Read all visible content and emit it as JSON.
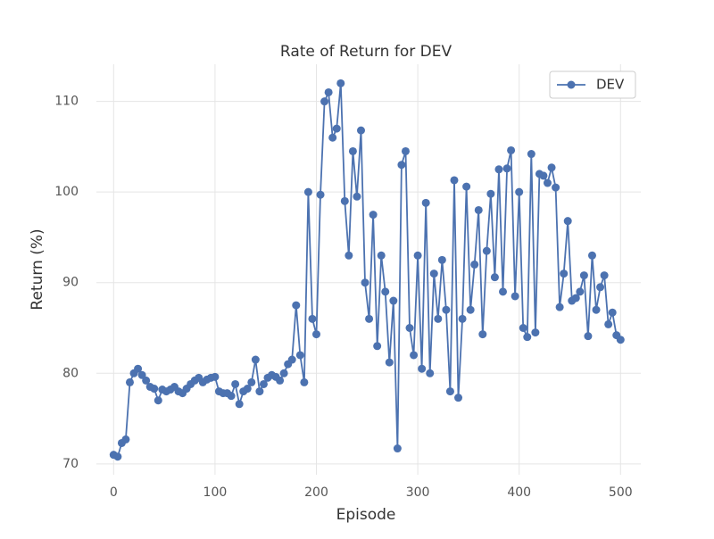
{
  "chart_data": {
    "type": "line",
    "title": "Rate of Return for DEV",
    "x_label": "Episode",
    "y_label": "Return (%)",
    "x": [
      0,
      4,
      8,
      12,
      16,
      20,
      24,
      28,
      32,
      36,
      40,
      44,
      48,
      52,
      56,
      60,
      64,
      68,
      72,
      76,
      80,
      84,
      88,
      92,
      96,
      100,
      104,
      108,
      112,
      116,
      120,
      124,
      128,
      132,
      136,
      140,
      144,
      148,
      152,
      156,
      160,
      164,
      168,
      172,
      176,
      180,
      184,
      188,
      192,
      196,
      200,
      204,
      208,
      212,
      216,
      220,
      224,
      228,
      232,
      236,
      240,
      244,
      248,
      252,
      256,
      260,
      264,
      268,
      272,
      276,
      280,
      284,
      288,
      292,
      296,
      300,
      304,
      308,
      312,
      316,
      320,
      324,
      328,
      332,
      336,
      340,
      344,
      348,
      352,
      356,
      360,
      364,
      368,
      372,
      376,
      380,
      384,
      388,
      392,
      396,
      400,
      404,
      408,
      412,
      416,
      420,
      424,
      428,
      432,
      436,
      440,
      444,
      448,
      452,
      456,
      460,
      464,
      468,
      472,
      476,
      480,
      484,
      488,
      492,
      496,
      500
    ],
    "series": [
      {
        "name": "DEV",
        "color": "#4c72b0",
        "values": [
          71,
          70.8,
          72.3,
          72.7,
          79,
          80,
          80.5,
          79.8,
          79.2,
          78.5,
          78.3,
          77,
          78.2,
          78,
          78.2,
          78.5,
          78,
          77.8,
          78.3,
          78.8,
          79.2,
          79.5,
          79,
          79.3,
          79.5,
          79.6,
          78,
          77.8,
          77.8,
          77.5,
          78.8,
          76.6,
          78,
          78.3,
          79,
          81.5,
          78,
          78.8,
          79.5,
          79.8,
          79.6,
          79.2,
          80,
          81,
          81.5,
          87.5,
          82,
          79,
          100,
          86,
          84.3,
          99.7,
          110,
          111,
          106,
          107,
          112,
          99,
          93,
          104.5,
          99.5,
          106.8,
          90,
          86,
          97.5,
          83,
          93,
          89,
          81.2,
          88,
          71.7,
          103,
          104.5,
          85,
          82,
          93,
          80.5,
          98.8,
          80,
          91,
          86,
          92.5,
          87,
          78,
          101.3,
          77.3,
          86,
          100.6,
          87,
          92,
          98,
          84.3,
          93.5,
          99.8,
          90.6,
          102.5,
          89,
          102.6,
          104.6,
          88.5,
          100,
          85,
          84,
          104.2,
          84.5,
          102,
          101.8,
          101,
          102.7,
          100.5,
          87.3,
          91,
          96.8,
          88,
          88.3,
          89,
          90.8,
          84.1,
          93,
          87,
          89.5,
          90.8,
          85.4,
          86.7,
          84.2,
          83.7
        ]
      }
    ],
    "xlim": [
      -17,
      520
    ],
    "ylim": [
      68.8,
      114.1
    ],
    "xticks": [
      0,
      100,
      200,
      300,
      400,
      500
    ],
    "yticks": [
      70,
      80,
      90,
      100,
      110
    ],
    "grid": true,
    "legend": "upper right"
  }
}
